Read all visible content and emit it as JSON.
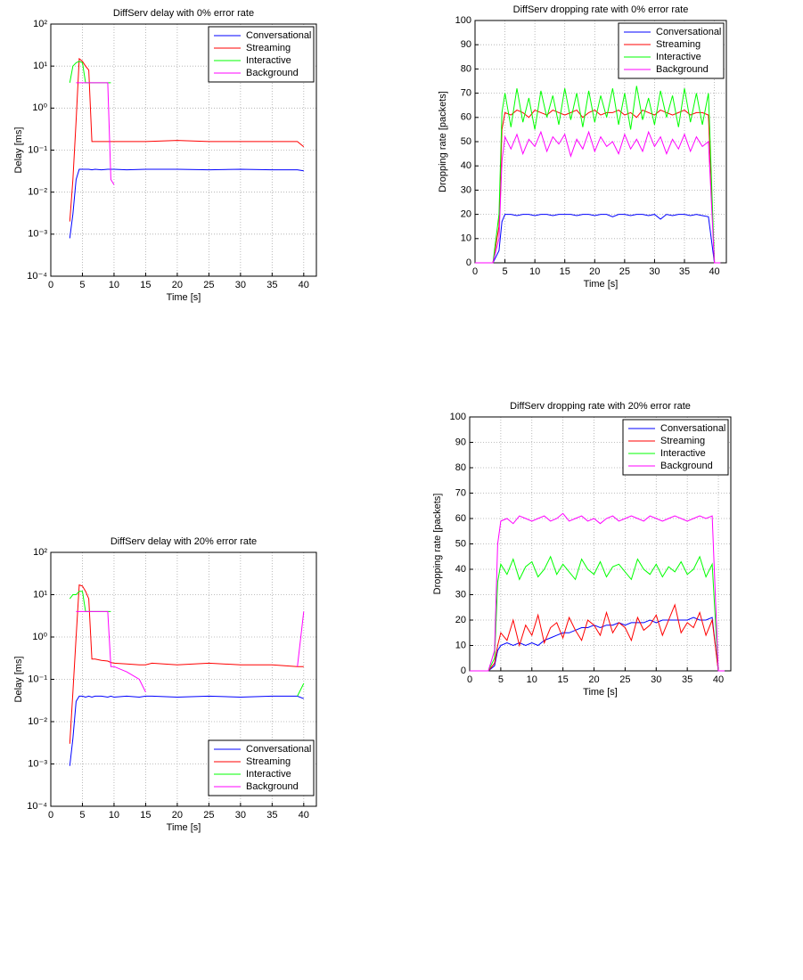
{
  "chart_data": [
    {
      "type": "line",
      "title": "DiffServ delay with 0% error rate",
      "xlabel": "Time [s]",
      "ylabel": "Delay [ms]",
      "yscale": "log",
      "grid": true,
      "legend": "upper right",
      "xlim": [
        0,
        42
      ],
      "ylim": [
        0.0001,
        100
      ],
      "xticks": [
        0,
        5,
        10,
        15,
        20,
        25,
        30,
        35,
        40
      ],
      "yticks": [
        {
          "value": 0.0001,
          "label": "10⁻⁴"
        },
        {
          "value": 0.001,
          "label": "10⁻³"
        },
        {
          "value": 0.01,
          "label": "10⁻²"
        },
        {
          "value": 0.1,
          "label": "10⁻¹"
        },
        {
          "value": 1,
          "label": "10⁰"
        },
        {
          "value": 10,
          "label": "10¹"
        },
        {
          "value": 100,
          "label": "10²"
        }
      ],
      "x": [
        3,
        3.5,
        4,
        4.5,
        5,
        5.5,
        6,
        6.5,
        7,
        8,
        9,
        9.5,
        10,
        12,
        15,
        20,
        25,
        30,
        35,
        39,
        40
      ],
      "series": [
        {
          "name": "Conversational",
          "color": "#0000ff",
          "values": [
            0.0008,
            0.003,
            0.02,
            0.035,
            0.035,
            0.035,
            0.035,
            0.034,
            0.035,
            0.034,
            0.035,
            0.035,
            0.035,
            0.034,
            0.035,
            0.035,
            0.034,
            0.035,
            0.034,
            0.034,
            0.032
          ]
        },
        {
          "name": "Streaming",
          "color": "#ff0000",
          "values": [
            0.002,
            0.02,
            0.5,
            15,
            13,
            10,
            8,
            0.16,
            0.16,
            0.16,
            0.16,
            0.16,
            0.16,
            0.16,
            0.16,
            0.17,
            0.16,
            0.16,
            0.16,
            0.16,
            0.12
          ]
        },
        {
          "name": "Interactive",
          "color": "#00ff00",
          "values": [
            4,
            10,
            12,
            13,
            12,
            4,
            4,
            4,
            4,
            4,
            4,
            4,
            null,
            null,
            null,
            null,
            null,
            null,
            null,
            null,
            null
          ]
        },
        {
          "name": "Background",
          "color": "#ff00ff",
          "values": [
            null,
            null,
            4,
            4,
            4,
            4,
            4,
            4,
            4,
            4,
            4,
            0.02,
            0.015,
            null,
            null,
            null,
            null,
            null,
            null,
            null,
            null
          ]
        }
      ]
    },
    {
      "type": "line",
      "title": "DiffServ dropping rate with 0% error rate",
      "xlabel": "Time [s]",
      "ylabel": "Dropping rate [packets]",
      "yscale": "linear",
      "grid": true,
      "legend": "upper right",
      "xlim": [
        0,
        42
      ],
      "ylim": [
        0,
        100
      ],
      "xticks": [
        0,
        5,
        10,
        15,
        20,
        25,
        30,
        35,
        40
      ],
      "yticks": [
        0,
        10,
        20,
        30,
        40,
        50,
        60,
        70,
        80,
        90,
        100
      ],
      "x": [
        0,
        1,
        2,
        3,
        4,
        4.5,
        5,
        6,
        7,
        8,
        9,
        10,
        11,
        12,
        13,
        14,
        15,
        16,
        17,
        18,
        19,
        20,
        21,
        22,
        23,
        24,
        25,
        26,
        27,
        28,
        29,
        30,
        31,
        32,
        33,
        34,
        35,
        36,
        37,
        38,
        39,
        40,
        41
      ],
      "series": [
        {
          "name": "Conversational",
          "color": "#0000ff",
          "values": [
            0,
            0,
            0,
            0,
            5,
            17,
            20,
            20,
            19.5,
            20,
            20,
            19.5,
            20,
            20,
            19.5,
            20,
            20,
            20,
            19.5,
            20,
            20,
            19.5,
            20,
            20,
            19,
            20,
            20,
            19.5,
            20,
            20,
            19.5,
            20,
            18,
            20,
            19.5,
            20,
            20,
            19.5,
            20,
            19.5,
            19,
            0,
            0
          ]
        },
        {
          "name": "Streaming",
          "color": "#ff0000",
          "values": [
            0,
            0,
            0,
            0,
            15,
            55,
            62,
            61,
            63,
            62,
            60,
            63,
            62,
            61,
            63,
            62,
            61,
            62,
            63,
            60,
            62,
            63,
            61,
            62,
            62,
            63,
            61,
            62,
            60,
            63,
            62,
            61,
            63,
            62,
            61,
            62,
            63,
            61,
            62,
            62,
            61,
            0,
            0
          ]
        },
        {
          "name": "Interactive",
          "color": "#00ff00",
          "values": [
            0,
            0,
            0,
            0,
            20,
            62,
            70,
            56,
            72,
            58,
            68,
            55,
            71,
            60,
            69,
            57,
            72,
            59,
            70,
            56,
            71,
            58,
            69,
            60,
            72,
            57,
            70,
            55,
            73,
            59,
            68,
            57,
            71,
            60,
            69,
            56,
            72,
            58,
            70,
            57,
            70,
            0,
            0
          ]
        },
        {
          "name": "Background",
          "color": "#ff00ff",
          "values": [
            0,
            0,
            0,
            0,
            10,
            42,
            52,
            47,
            53,
            45,
            51,
            48,
            54,
            46,
            52,
            49,
            53,
            44,
            51,
            47,
            54,
            46,
            52,
            48,
            50,
            45,
            53,
            47,
            51,
            46,
            54,
            48,
            52,
            45,
            51,
            47,
            53,
            46,
            52,
            48,
            50,
            0,
            0
          ]
        }
      ]
    },
    {
      "type": "line",
      "title": "DiffServ dropping rate with 20% error rate",
      "xlabel": "Time [s]",
      "ylabel": "Dropping rate [packets]",
      "yscale": "linear",
      "grid": true,
      "legend": "upper right",
      "xlim": [
        0,
        42
      ],
      "ylim": [
        0,
        100
      ],
      "xticks": [
        0,
        5,
        10,
        15,
        20,
        25,
        30,
        35,
        40
      ],
      "yticks": [
        0,
        10,
        20,
        30,
        40,
        50,
        60,
        70,
        80,
        90,
        100
      ],
      "x": [
        0,
        1,
        2,
        3,
        4,
        4.5,
        5,
        6,
        7,
        8,
        9,
        10,
        11,
        12,
        13,
        14,
        15,
        16,
        17,
        18,
        19,
        20,
        21,
        22,
        23,
        24,
        25,
        26,
        27,
        28,
        29,
        30,
        31,
        32,
        33,
        34,
        35,
        36,
        37,
        38,
        39,
        40,
        41
      ],
      "series": [
        {
          "name": "Conversational",
          "color": "#0000ff",
          "values": [
            0,
            0,
            0,
            0,
            2,
            8,
            10,
            11,
            10,
            11,
            10,
            11,
            10,
            12,
            13,
            14,
            15,
            15,
            16,
            17,
            17,
            18,
            17,
            18,
            18,
            19,
            18,
            19,
            19,
            19,
            20,
            19,
            20,
            20,
            20,
            20,
            20,
            21,
            20,
            20,
            21,
            0,
            0
          ]
        },
        {
          "name": "Streaming",
          "color": "#ff0000",
          "values": [
            0,
            0,
            0,
            0,
            3,
            10,
            15,
            12,
            20,
            10,
            18,
            14,
            22,
            11,
            17,
            19,
            13,
            21,
            16,
            12,
            20,
            18,
            14,
            23,
            15,
            19,
            17,
            12,
            21,
            16,
            18,
            22,
            14,
            20,
            26,
            15,
            19,
            17,
            23,
            14,
            20,
            0,
            0
          ]
        },
        {
          "name": "Interactive",
          "color": "#00ff00",
          "values": [
            0,
            0,
            0,
            0,
            5,
            35,
            42,
            38,
            44,
            36,
            41,
            43,
            37,
            40,
            45,
            38,
            42,
            39,
            36,
            44,
            40,
            38,
            43,
            37,
            41,
            42,
            39,
            36,
            44,
            40,
            38,
            42,
            37,
            41,
            39,
            43,
            38,
            40,
            45,
            37,
            42,
            0,
            0
          ]
        },
        {
          "name": "Background",
          "color": "#ff00ff",
          "values": [
            0,
            0,
            0,
            0,
            8,
            50,
            59,
            60,
            58,
            61,
            60,
            59,
            60,
            61,
            59,
            60,
            62,
            59,
            60,
            61,
            59,
            60,
            58,
            60,
            61,
            59,
            60,
            61,
            60,
            59,
            61,
            60,
            59,
            60,
            61,
            60,
            59,
            60,
            61,
            60,
            61,
            0,
            0
          ]
        }
      ]
    },
    {
      "type": "line",
      "title": "DiffServ delay with 20% error rate",
      "xlabel": "Time [s]",
      "ylabel": "Delay [ms]",
      "yscale": "log",
      "grid": true,
      "legend": "lower right",
      "xlim": [
        0,
        42
      ],
      "ylim": [
        0.0001,
        100
      ],
      "xticks": [
        0,
        5,
        10,
        15,
        20,
        25,
        30,
        35,
        40
      ],
      "yticks": [
        {
          "value": 0.0001,
          "label": "10⁻⁴"
        },
        {
          "value": 0.001,
          "label": "10⁻³"
        },
        {
          "value": 0.01,
          "label": "10⁻²"
        },
        {
          "value": 0.1,
          "label": "10⁻¹"
        },
        {
          "value": 1,
          "label": "10⁰"
        },
        {
          "value": 10,
          "label": "10¹"
        },
        {
          "value": 100,
          "label": "10²"
        }
      ],
      "x": [
        3,
        3.5,
        4,
        4.5,
        5,
        5.5,
        6,
        6.5,
        7,
        8,
        9,
        9.5,
        10,
        12,
        14,
        15,
        16,
        20,
        25,
        30,
        35,
        39,
        40
      ],
      "series": [
        {
          "name": "Conversational",
          "color": "#0000ff",
          "values": [
            0.0009,
            0.004,
            0.03,
            0.04,
            0.04,
            0.038,
            0.04,
            0.038,
            0.04,
            0.04,
            0.038,
            0.04,
            0.038,
            0.04,
            0.038,
            0.04,
            0.04,
            0.038,
            0.04,
            0.038,
            0.04,
            0.04,
            0.035
          ]
        },
        {
          "name": "Streaming",
          "color": "#ff0000",
          "values": [
            0.003,
            0.05,
            1,
            17,
            16,
            12,
            8,
            0.3,
            0.3,
            0.28,
            0.27,
            0.25,
            0.24,
            0.23,
            0.22,
            0.22,
            0.24,
            0.22,
            0.24,
            0.22,
            0.22,
            0.2,
            0.2
          ]
        },
        {
          "name": "Interactive",
          "color": "#00ff00",
          "values": [
            8,
            10,
            10,
            12,
            12,
            4,
            4,
            4,
            4,
            4,
            4,
            4,
            null,
            null,
            null,
            null,
            null,
            null,
            null,
            null,
            null,
            0.04,
            0.08
          ]
        },
        {
          "name": "Background",
          "color": "#ff00ff",
          "values": [
            null,
            null,
            4,
            4,
            4,
            4,
            4,
            4,
            4,
            4,
            4,
            0.2,
            0.2,
            0.15,
            0.1,
            0.05,
            null,
            null,
            null,
            null,
            null,
            0.2,
            4
          ]
        }
      ]
    }
  ]
}
